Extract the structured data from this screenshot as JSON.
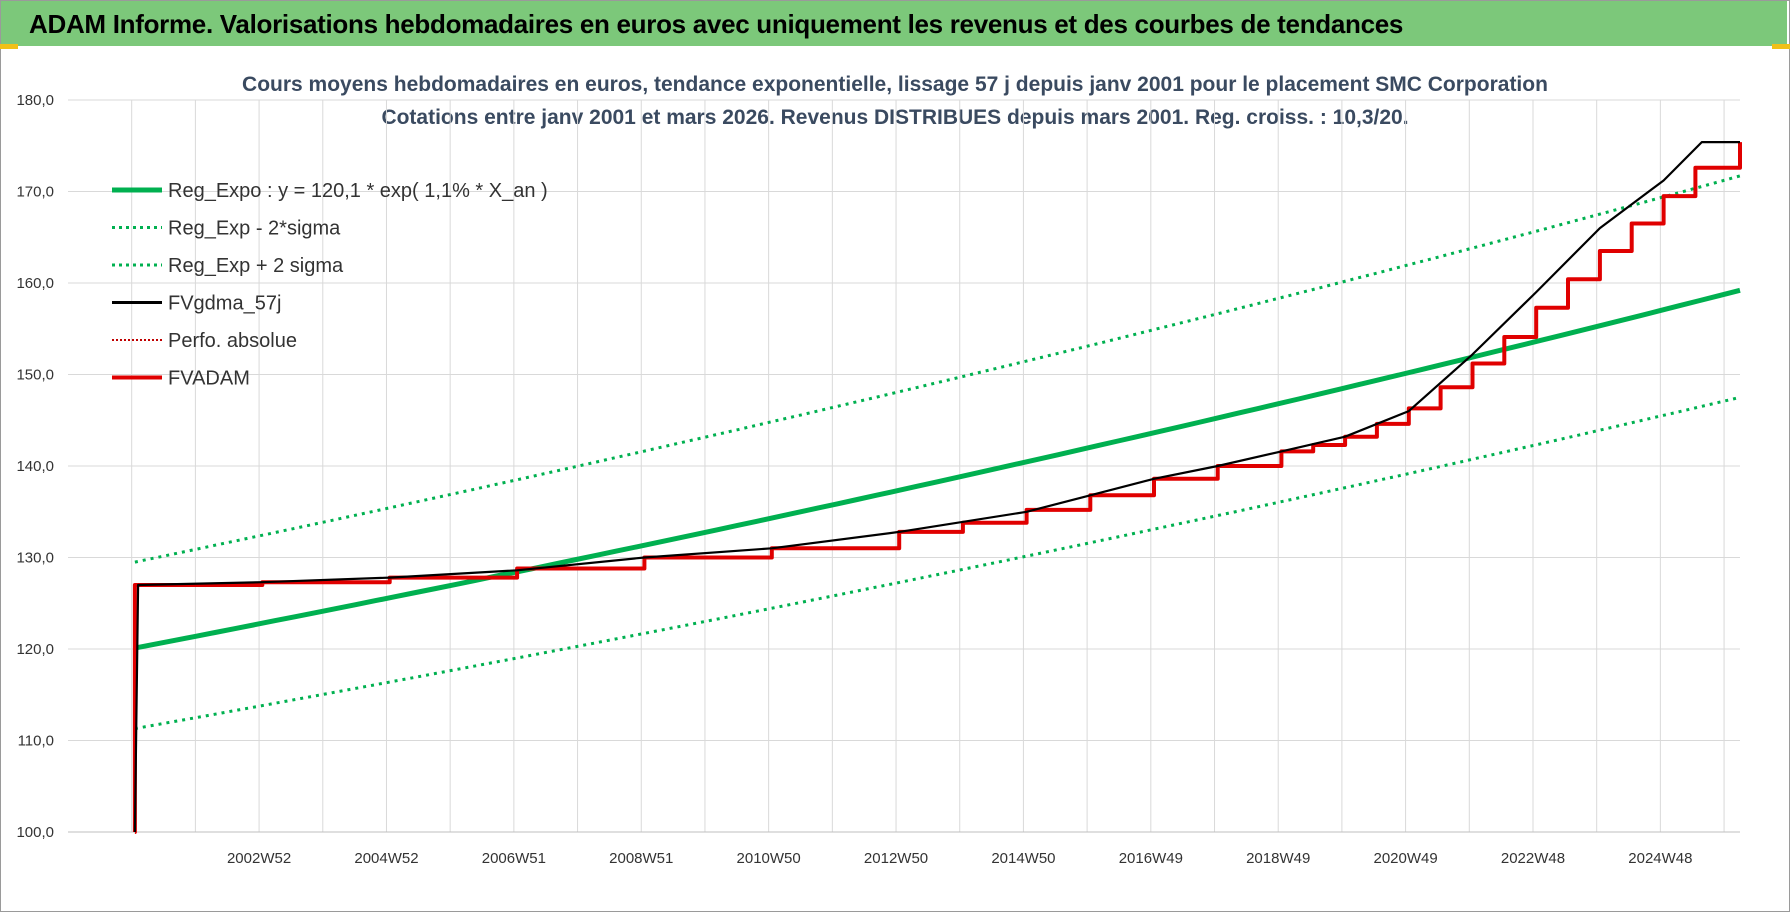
{
  "header": {
    "title": "ADAM Informe. Valorisations hebdomadaires en euros avec uniquement les revenus et des courbes de tendances"
  },
  "chart_data": {
    "type": "line",
    "title_lines": [
      "Cours moyens hebdomadaires en euros, tendance exponentielle, lissage 57 j depuis janv 2001 pour le placement SMC Corporation",
      "Cotations entre janv 2001 et mars 2026. Revenus DISTRIBUES depuis mars 2001. Reg. croiss. : 10,3/20."
    ],
    "ylim": [
      100,
      180
    ],
    "yticks": [
      "100,0",
      "110,0",
      "120,0",
      "130,0",
      "140,0",
      "150,0",
      "160,0",
      "170,0",
      "180,0"
    ],
    "xlim": [
      1999.95,
      2026.2
    ],
    "xticks": [
      {
        "label": "2002W52",
        "x": 2002.95
      },
      {
        "label": "2004W52",
        "x": 2004.95
      },
      {
        "label": "2006W51",
        "x": 2006.95
      },
      {
        "label": "2008W51",
        "x": 2008.95
      },
      {
        "label": "2010W50",
        "x": 2010.95
      },
      {
        "label": "2012W50",
        "x": 2012.95
      },
      {
        "label": "2014W50",
        "x": 2014.95
      },
      {
        "label": "2016W49",
        "x": 2016.95
      },
      {
        "label": "2018W49",
        "x": 2018.95
      },
      {
        "label": "2020W49",
        "x": 2020.95
      },
      {
        "label": "2022W48",
        "x": 2022.95
      },
      {
        "label": "2024W48",
        "x": 2024.95
      }
    ],
    "grid": true,
    "legend_position": "top-left",
    "series": [
      {
        "name": "Reg_Expo : y = 120,1 * exp( 1,1% *  X_an )",
        "color": "#00b050",
        "style": "solid-thick",
        "x": [
          2001.0,
          2026.2
        ],
        "y": [
          120.1,
          159.2
        ]
      },
      {
        "name": "Reg_Exp - 2*sigma",
        "color": "#00b050",
        "style": "dotted",
        "x": [
          2001.0,
          2026.2
        ],
        "y": [
          111.3,
          147.5
        ]
      },
      {
        "name": "Reg_Exp + 2 sigma",
        "color": "#00b050",
        "style": "dotted",
        "x": [
          2001.0,
          2026.2
        ],
        "y": [
          129.5,
          171.7
        ]
      },
      {
        "name": "FVgdma_57j",
        "color": "#000000",
        "style": "solid",
        "x": [
          2001.0,
          2001.05,
          2003,
          2005,
          2007,
          2009,
          2011,
          2013,
          2015,
          2016,
          2017,
          2018,
          2019,
          2020,
          2021,
          2022,
          2023,
          2024,
          2025,
          2025.6,
          2026.2
        ],
        "y": [
          100.0,
          127.0,
          127.3,
          127.8,
          128.6,
          130.0,
          131.0,
          132.8,
          135.0,
          136.8,
          138.6,
          140.0,
          141.6,
          143.2,
          146.0,
          152.2,
          159.0,
          166.0,
          171.2,
          175.4,
          175.4
        ]
      },
      {
        "name": "Perfo. absolue",
        "color": "#c00000",
        "style": "dotted",
        "x": [],
        "y": []
      },
      {
        "name": "FVADAM",
        "color": "#e00000",
        "style": "solid-thick-step",
        "x": [
          2001.0,
          2001.0,
          2003.0,
          2005.0,
          2007.0,
          2009.0,
          2011.0,
          2013.0,
          2014.0,
          2015.0,
          2016.0,
          2017.0,
          2018.0,
          2019.0,
          2019.5,
          2020.0,
          2020.5,
          2021.0,
          2021.5,
          2022.0,
          2022.5,
          2023.0,
          2023.5,
          2024.0,
          2024.5,
          2025.0,
          2025.5,
          2026.2
        ],
        "y": [
          100.0,
          127.0,
          127.3,
          127.8,
          128.8,
          130.0,
          131.0,
          132.8,
          133.8,
          135.2,
          136.8,
          138.6,
          140.0,
          141.6,
          142.3,
          143.2,
          144.6,
          146.3,
          148.6,
          151.2,
          154.1,
          157.3,
          160.4,
          163.5,
          166.5,
          169.5,
          172.6,
          175.4
        ]
      }
    ]
  }
}
